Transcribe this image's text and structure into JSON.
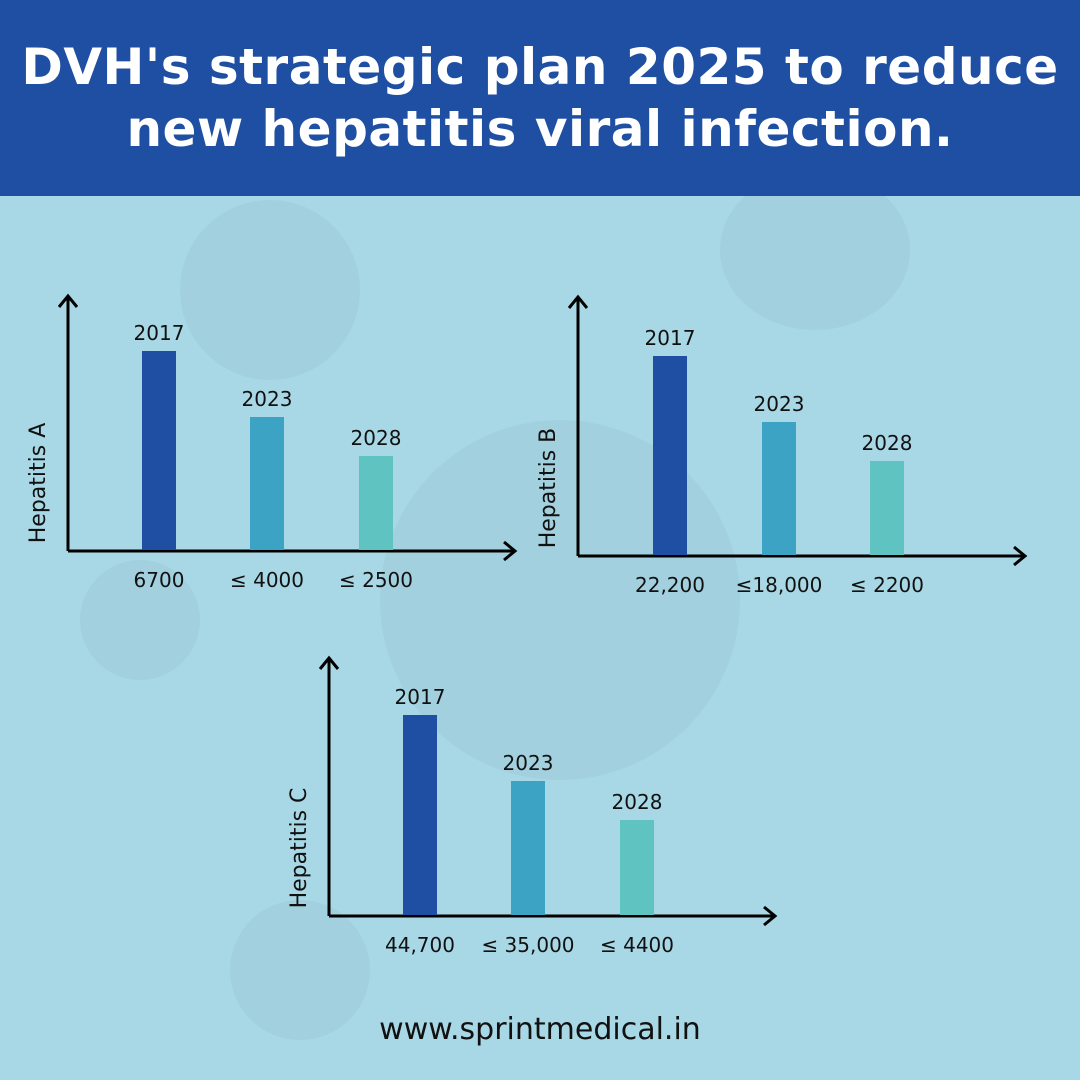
{
  "header": {
    "title_line1": "DVH's strategic plan 2025 to reduce",
    "title_line2": "new hepatitis viral infection."
  },
  "footer": {
    "url": "www.sprintmedical.in"
  },
  "colors": {
    "header_bg": "#1f4fa3",
    "background": "#a8d8e5",
    "bar_2017": "#1f4fa3",
    "bar_2023": "#3ca3c5",
    "bar_2028": "#5fc3c1"
  },
  "chart_data": [
    {
      "type": "bar",
      "ylabel": "Hepatitis A",
      "categories": [
        "2017",
        "2023",
        "2028"
      ],
      "value_labels": [
        "6700",
        "≤ 4000",
        "≤ 2500"
      ],
      "values": [
        6700,
        4000,
        2500
      ]
    },
    {
      "type": "bar",
      "ylabel": "Hepatitis B",
      "categories": [
        "2017",
        "2023",
        "2028"
      ],
      "value_labels": [
        "22,200",
        "≤18,000",
        "≤ 2200"
      ],
      "values": [
        22200,
        18000,
        2200
      ]
    },
    {
      "type": "bar",
      "ylabel": "Hepatitis C",
      "categories": [
        "2017",
        "2023",
        "2028"
      ],
      "value_labels": [
        "44,700",
        "≤ 35,000",
        "≤ 4400"
      ],
      "values": [
        44700,
        35000,
        4400
      ]
    }
  ]
}
